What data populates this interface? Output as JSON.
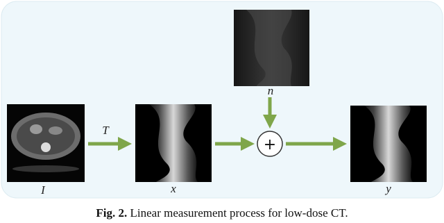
{
  "figure": {
    "labels": {
      "input": "I",
      "transform": "T",
      "measurement": "x",
      "noise": "n",
      "sum": "+",
      "output": "y"
    },
    "caption": {
      "number": "Fig. 2.",
      "text": "Linear measurement process for low-dose CT."
    }
  }
}
